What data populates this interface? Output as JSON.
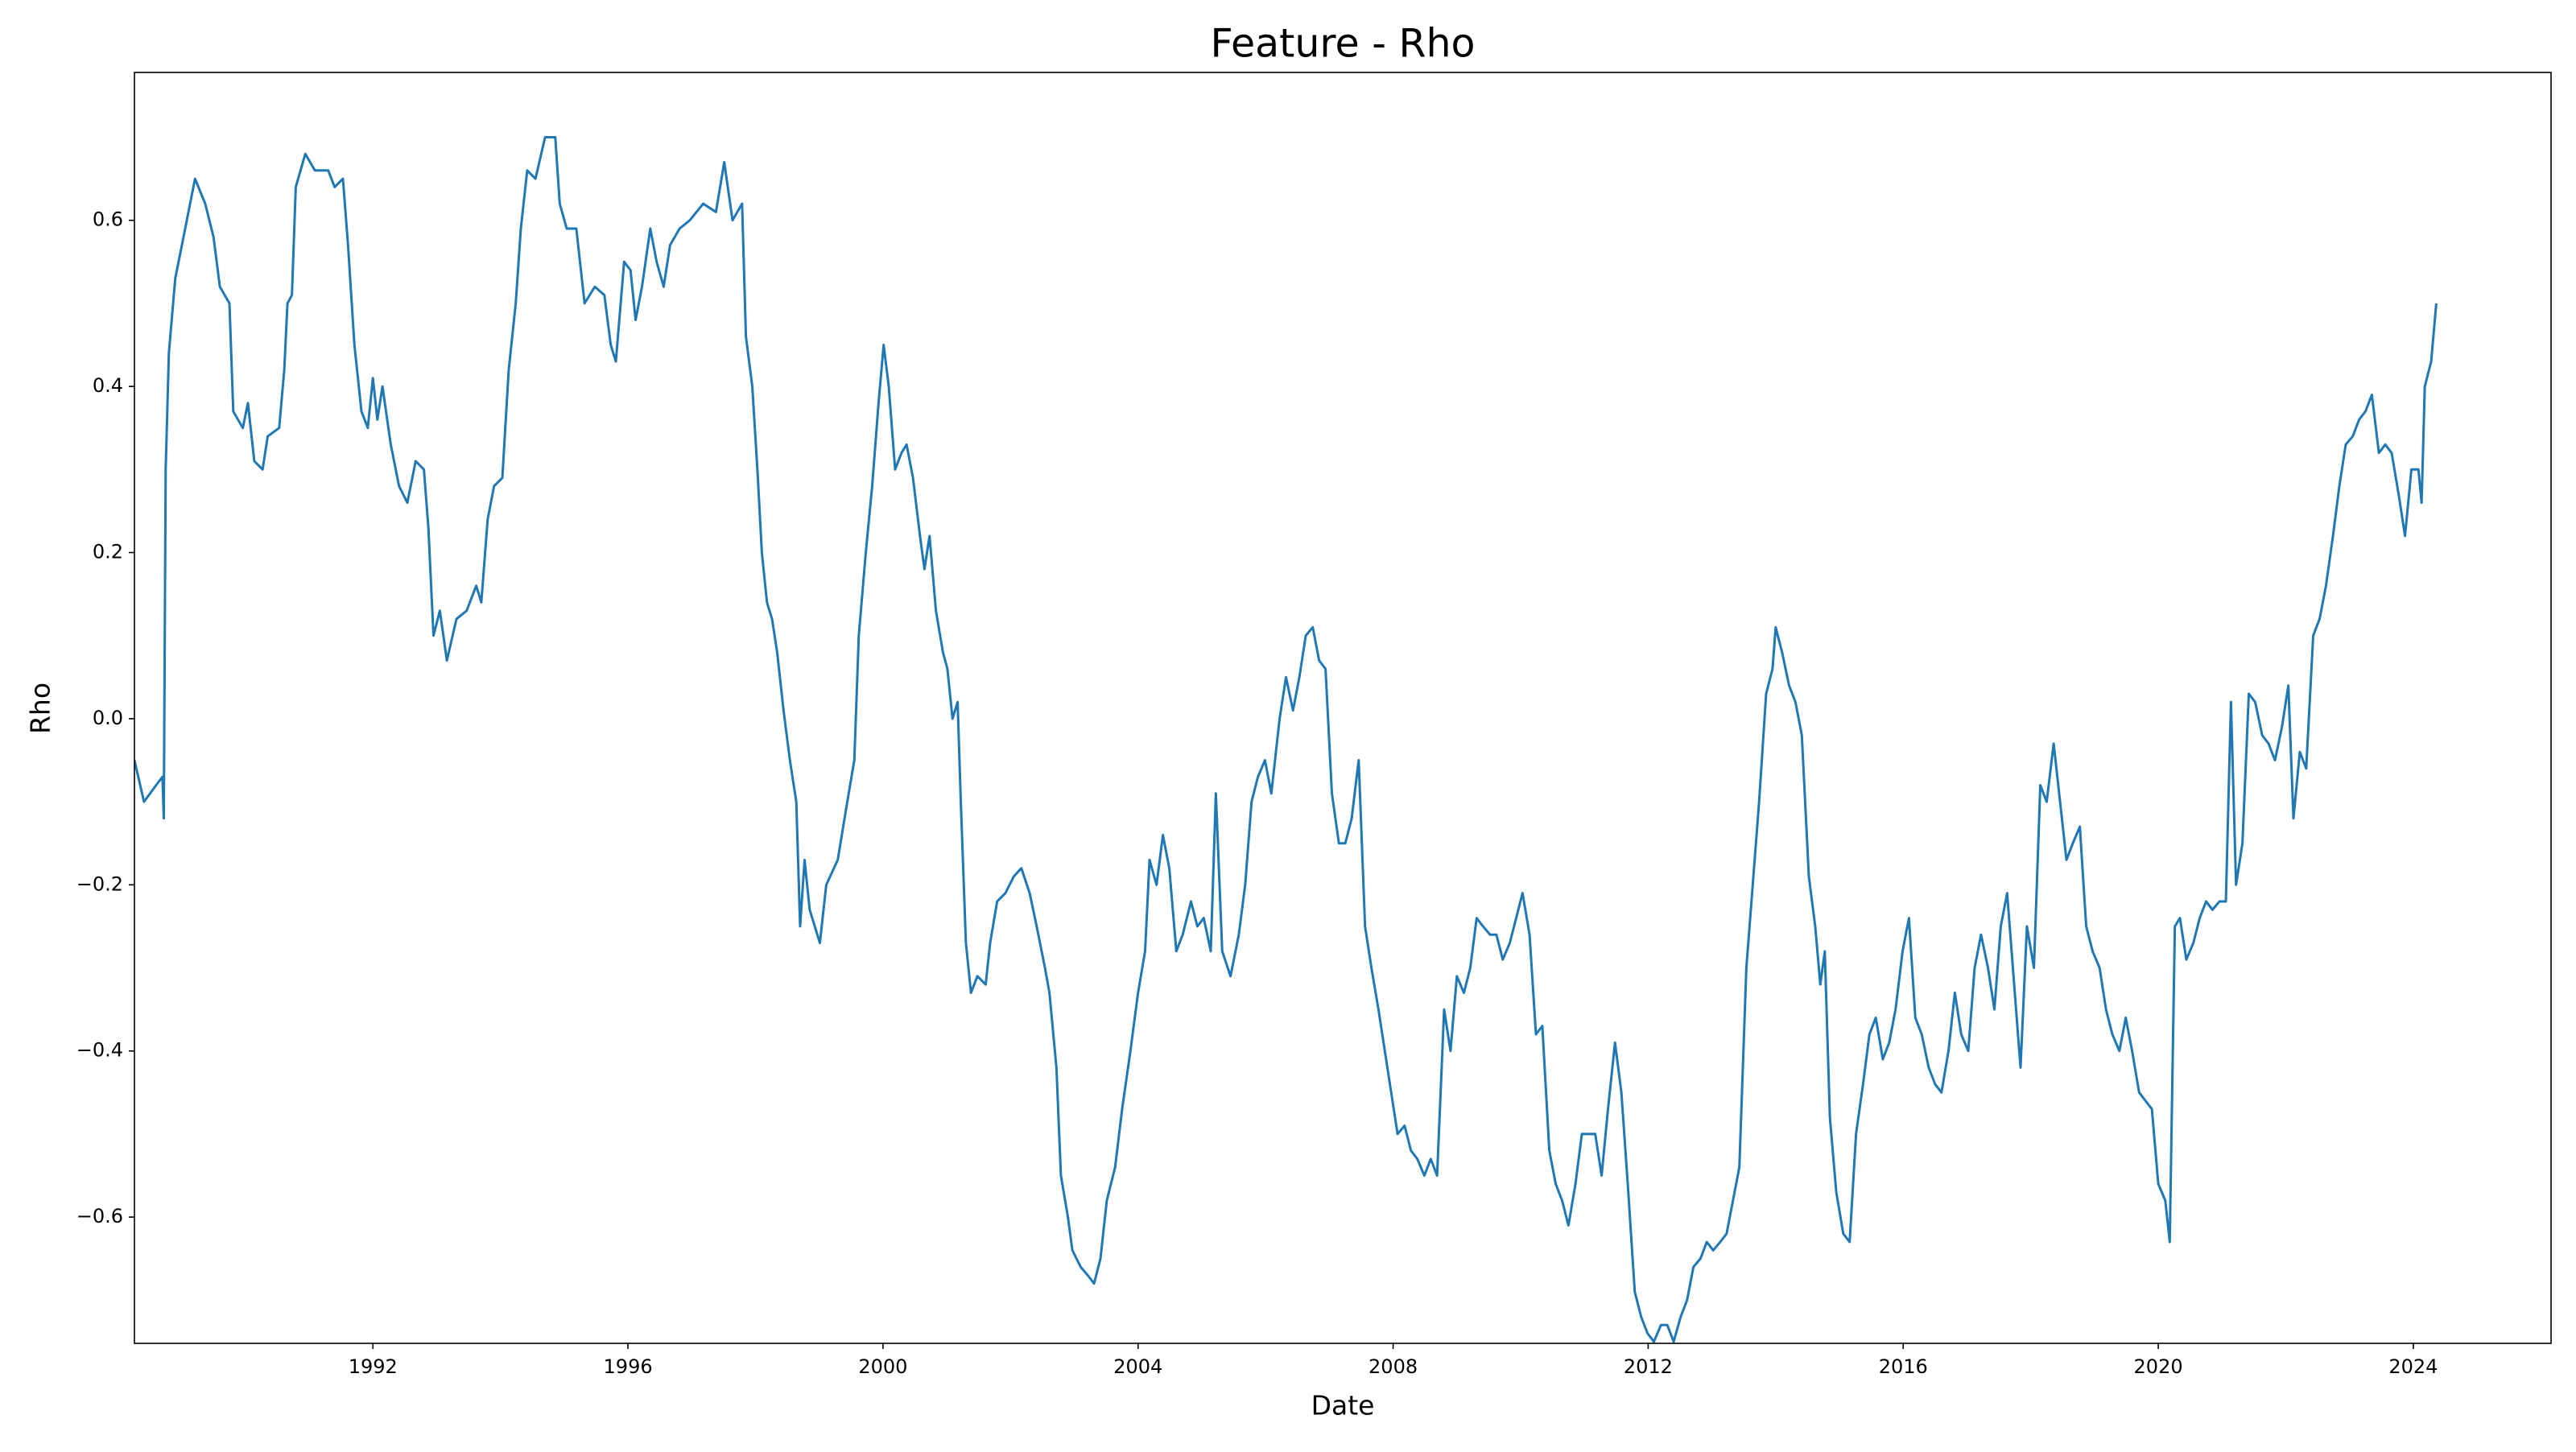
{
  "chart_data": {
    "type": "line",
    "title": "Feature - Rho",
    "x_label": "Date",
    "y_label": "Rho",
    "color": "#1f77b4",
    "grid": false,
    "xlim": [
      1988.26,
      2026.16
    ],
    "ylim": [
      -0.752,
      0.778
    ],
    "xticks": [
      1992,
      1996,
      2000,
      2004,
      2008,
      2012,
      2016,
      2020,
      2024
    ],
    "yticks": [
      {
        "value": -0.6,
        "label": "−0.6"
      },
      {
        "value": -0.4,
        "label": "−0.4"
      },
      {
        "value": -0.2,
        "label": "−0.2"
      },
      {
        "value": 0,
        "label": "0.0"
      },
      0.2,
      0.4,
      0.6
    ],
    "x": [
      1988.26,
      1988.41,
      1988.6,
      1988.7,
      1988.72,
      1988.75,
      1988.8,
      1988.9,
      1989.03,
      1989.21,
      1989.37,
      1989.5,
      1989.6,
      1989.75,
      1989.81,
      1989.96,
      1990.04,
      1990.14,
      1990.27,
      1990.35,
      1990.53,
      1990.61,
      1990.66,
      1990.73,
      1990.79,
      1990.94,
      1991.09,
      1991.3,
      1991.4,
      1991.53,
      1991.61,
      1991.71,
      1991.82,
      1991.92,
      1992.0,
      1992.07,
      1992.15,
      1992.28,
      1992.41,
      1992.54,
      1992.67,
      1992.8,
      1992.87,
      1992.95,
      1993.05,
      1993.16,
      1993.31,
      1993.47,
      1993.62,
      1993.7,
      1993.8,
      1993.9,
      1994.03,
      1994.13,
      1994.24,
      1994.32,
      1994.42,
      1994.55,
      1994.7,
      1994.86,
      1994.93,
      1995.04,
      1995.19,
      1995.32,
      1995.48,
      1995.63,
      1995.73,
      1995.81,
      1995.94,
      1996.04,
      1996.12,
      1996.22,
      1996.35,
      1996.45,
      1996.56,
      1996.66,
      1996.81,
      1996.97,
      1997.18,
      1997.38,
      1997.51,
      1997.64,
      1997.79,
      1997.85,
      1997.95,
      1998.03,
      1998.1,
      1998.18,
      1998.26,
      1998.34,
      1998.44,
      1998.54,
      1998.64,
      1998.7,
      1998.77,
      1998.85,
      1998.93,
      1999.01,
      1999.11,
      1999.29,
      1999.44,
      1999.55,
      1999.62,
      1999.73,
      1999.83,
      1999.93,
      2000.01,
      2000.09,
      2000.19,
      2000.29,
      2000.37,
      2000.47,
      2000.58,
      2000.65,
      2000.73,
      2000.83,
      2000.94,
      2001.01,
      2001.09,
      2001.17,
      2001.22,
      2001.3,
      2001.38,
      2001.48,
      2001.61,
      2001.68,
      2001.79,
      2001.92,
      2002.05,
      2002.17,
      2002.3,
      2002.41,
      2002.54,
      2002.61,
      2002.72,
      2002.79,
      2002.9,
      2002.97,
      2003.1,
      2003.21,
      2003.31,
      2003.41,
      2003.51,
      2003.64,
      2003.75,
      2003.88,
      2004.0,
      2004.11,
      2004.18,
      2004.29,
      2004.39,
      2004.49,
      2004.6,
      2004.7,
      2004.83,
      2004.93,
      2005.03,
      2005.14,
      2005.22,
      2005.32,
      2005.45,
      2005.58,
      2005.68,
      2005.78,
      2005.88,
      2005.99,
      2006.09,
      2006.22,
      2006.32,
      2006.43,
      2006.53,
      2006.63,
      2006.74,
      2006.84,
      2006.94,
      2007.04,
      2007.15,
      2007.25,
      2007.35,
      2007.46,
      2007.56,
      2007.66,
      2007.77,
      2007.87,
      2007.97,
      2008.07,
      2008.18,
      2008.28,
      2008.38,
      2008.49,
      2008.59,
      2008.69,
      2008.8,
      2008.9,
      2009.0,
      2009.11,
      2009.21,
      2009.31,
      2009.41,
      2009.52,
      2009.62,
      2009.72,
      2009.83,
      2009.93,
      2010.03,
      2010.14,
      2010.24,
      2010.34,
      2010.45,
      2010.55,
      2010.65,
      2010.75,
      2010.86,
      2010.96,
      2011.06,
      2011.17,
      2011.27,
      2011.37,
      2011.48,
      2011.58,
      2011.68,
      2011.79,
      2011.89,
      2011.99,
      2012.09,
      2012.2,
      2012.3,
      2012.4,
      2012.51,
      2012.61,
      2012.71,
      2012.82,
      2012.92,
      2013.02,
      2013.13,
      2013.23,
      2013.33,
      2013.43,
      2013.54,
      2013.64,
      2013.74,
      2013.85,
      2013.95,
      2014.0,
      2014.1,
      2014.21,
      2014.31,
      2014.41,
      2014.52,
      2014.62,
      2014.7,
      2014.77,
      2014.85,
      2014.95,
      2015.06,
      2015.16,
      2015.26,
      2015.37,
      2015.47,
      2015.57,
      2015.68,
      2015.78,
      2015.88,
      2015.99,
      2016.09,
      2016.19,
      2016.29,
      2016.4,
      2016.5,
      2016.6,
      2016.71,
      2016.81,
      2016.91,
      2017.02,
      2017.12,
      2017.22,
      2017.33,
      2017.43,
      2017.53,
      2017.63,
      2017.74,
      2017.84,
      2017.94,
      2018.05,
      2018.15,
      2018.25,
      2018.36,
      2018.46,
      2018.56,
      2018.66,
      2018.77,
      2018.87,
      2018.97,
      2019.08,
      2019.18,
      2019.28,
      2019.39,
      2019.49,
      2019.59,
      2019.7,
      2019.8,
      2019.9,
      2020.0,
      2020.11,
      2020.18,
      2020.26,
      2020.34,
      2020.44,
      2020.55,
      2020.65,
      2020.75,
      2020.85,
      2020.96,
      2021.06,
      2021.14,
      2021.22,
      2021.32,
      2021.42,
      2021.52,
      2021.63,
      2021.73,
      2021.83,
      2021.94,
      2022.04,
      2022.12,
      2022.22,
      2022.32,
      2022.43,
      2022.53,
      2022.63,
      2022.74,
      2022.84,
      2022.94,
      2023.05,
      2023.15,
      2023.25,
      2023.35,
      2023.46,
      2023.56,
      2023.66,
      2023.77,
      2023.87,
      2023.97,
      2024.08,
      2024.13,
      2024.18,
      2024.28,
      2024.36
    ],
    "values": [
      -0.05,
      -0.1,
      -0.08,
      -0.07,
      -0.12,
      0.3,
      0.44,
      0.53,
      0.58,
      0.65,
      0.62,
      0.58,
      0.52,
      0.5,
      0.37,
      0.35,
      0.38,
      0.31,
      0.3,
      0.34,
      0.35,
      0.42,
      0.5,
      0.51,
      0.64,
      0.68,
      0.66,
      0.66,
      0.64,
      0.65,
      0.57,
      0.45,
      0.37,
      0.35,
      0.41,
      0.36,
      0.4,
      0.33,
      0.28,
      0.26,
      0.31,
      0.3,
      0.23,
      0.1,
      0.13,
      0.07,
      0.12,
      0.13,
      0.16,
      0.14,
      0.24,
      0.28,
      0.29,
      0.42,
      0.5,
      0.59,
      0.66,
      0.65,
      0.7,
      0.7,
      0.62,
      0.59,
      0.59,
      0.5,
      0.52,
      0.51,
      0.45,
      0.43,
      0.55,
      0.54,
      0.48,
      0.52,
      0.59,
      0.55,
      0.52,
      0.57,
      0.59,
      0.6,
      0.62,
      0.61,
      0.67,
      0.6,
      0.62,
      0.46,
      0.4,
      0.3,
      0.2,
      0.14,
      0.12,
      0.08,
      0.01,
      -0.05,
      -0.1,
      -0.25,
      -0.17,
      -0.23,
      -0.25,
      -0.27,
      -0.2,
      -0.17,
      -0.1,
      -0.05,
      0.1,
      0.2,
      0.28,
      0.38,
      0.45,
      0.4,
      0.3,
      0.32,
      0.33,
      0.29,
      0.22,
      0.18,
      0.22,
      0.13,
      0.08,
      0.06,
      0.0,
      0.02,
      -0.1,
      -0.27,
      -0.33,
      -0.31,
      -0.32,
      -0.27,
      -0.22,
      -0.21,
      -0.19,
      -0.18,
      -0.21,
      -0.25,
      -0.3,
      -0.33,
      -0.42,
      -0.55,
      -0.6,
      -0.64,
      -0.66,
      -0.67,
      -0.68,
      -0.65,
      -0.58,
      -0.54,
      -0.47,
      -0.4,
      -0.33,
      -0.28,
      -0.17,
      -0.2,
      -0.14,
      -0.18,
      -0.28,
      -0.26,
      -0.22,
      -0.25,
      -0.24,
      -0.28,
      -0.09,
      -0.28,
      -0.31,
      -0.26,
      -0.2,
      -0.1,
      -0.07,
      -0.05,
      -0.09,
      0.0,
      0.05,
      0.01,
      0.05,
      0.1,
      0.11,
      0.07,
      0.06,
      -0.09,
      -0.15,
      -0.15,
      -0.12,
      -0.05,
      -0.25,
      -0.3,
      -0.35,
      -0.4,
      -0.45,
      -0.5,
      -0.49,
      -0.52,
      -0.53,
      -0.55,
      -0.53,
      -0.55,
      -0.35,
      -0.4,
      -0.31,
      -0.33,
      -0.3,
      -0.24,
      -0.25,
      -0.26,
      -0.26,
      -0.29,
      -0.27,
      -0.24,
      -0.21,
      -0.26,
      -0.38,
      -0.37,
      -0.52,
      -0.56,
      -0.58,
      -0.61,
      -0.56,
      -0.5,
      -0.5,
      -0.5,
      -0.55,
      -0.47,
      -0.39,
      -0.45,
      -0.56,
      -0.69,
      -0.72,
      -0.74,
      -0.75,
      -0.73,
      -0.73,
      -0.75,
      -0.72,
      -0.7,
      -0.66,
      -0.65,
      -0.63,
      -0.64,
      -0.63,
      -0.62,
      -0.58,
      -0.54,
      -0.3,
      -0.2,
      -0.1,
      0.03,
      0.06,
      0.11,
      0.08,
      0.04,
      0.02,
      -0.02,
      -0.19,
      -0.25,
      -0.32,
      -0.28,
      -0.48,
      -0.57,
      -0.62,
      -0.63,
      -0.5,
      -0.44,
      -0.38,
      -0.36,
      -0.41,
      -0.39,
      -0.35,
      -0.28,
      -0.24,
      -0.36,
      -0.38,
      -0.42,
      -0.44,
      -0.45,
      -0.4,
      -0.33,
      -0.38,
      -0.4,
      -0.3,
      -0.26,
      -0.3,
      -0.35,
      -0.25,
      -0.21,
      -0.32,
      -0.42,
      -0.25,
      -0.3,
      -0.08,
      -0.1,
      -0.03,
      -0.1,
      -0.17,
      -0.15,
      -0.13,
      -0.25,
      -0.28,
      -0.3,
      -0.35,
      -0.38,
      -0.4,
      -0.36,
      -0.4,
      -0.45,
      -0.46,
      -0.47,
      -0.56,
      -0.58,
      -0.63,
      -0.25,
      -0.24,
      -0.29,
      -0.27,
      -0.24,
      -0.22,
      -0.23,
      -0.22,
      -0.22,
      0.02,
      -0.2,
      -0.15,
      0.03,
      0.02,
      -0.02,
      -0.03,
      -0.05,
      -0.01,
      0.04,
      -0.12,
      -0.04,
      -0.06,
      0.1,
      0.12,
      0.16,
      0.22,
      0.28,
      0.33,
      0.34,
      0.36,
      0.37,
      0.39,
      0.32,
      0.33,
      0.32,
      0.27,
      0.22,
      0.3,
      0.3,
      0.26,
      0.4,
      0.43,
      0.5
    ]
  }
}
